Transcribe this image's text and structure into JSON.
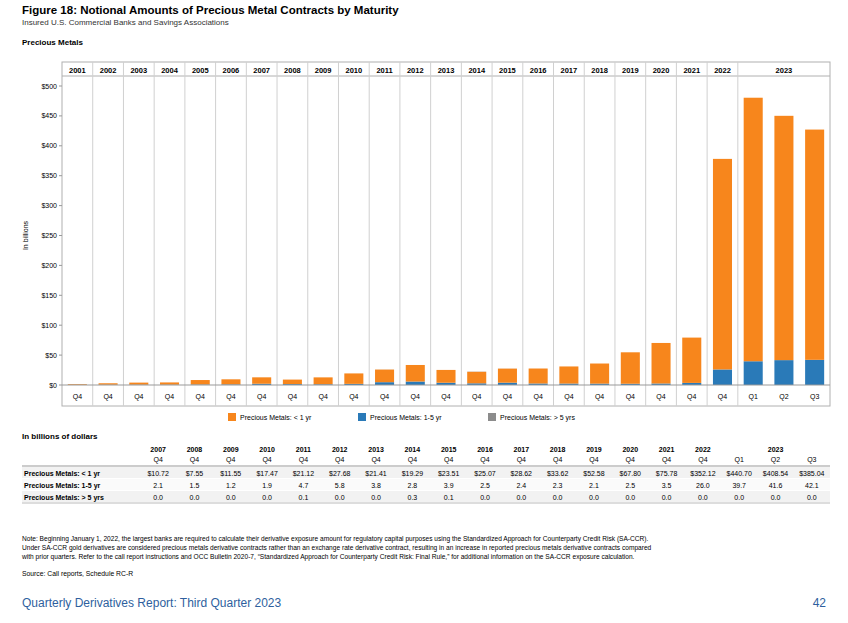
{
  "header": {
    "title": "Figure 18: Notional Amounts of Precious Metal Contracts by Maturity",
    "subtitle": "Insured U.S. Commercial Banks and Savings Associations"
  },
  "chart_data": {
    "type": "bar",
    "title": "Precious Metals",
    "y_label": "In billions",
    "stacked": true,
    "grid": false,
    "legend": "bottom",
    "year_groups": [
      {
        "label": "2001",
        "count": 1
      },
      {
        "label": "2002",
        "count": 1
      },
      {
        "label": "2003",
        "count": 1
      },
      {
        "label": "2004",
        "count": 1
      },
      {
        "label": "2005",
        "count": 1
      },
      {
        "label": "2006",
        "count": 1
      },
      {
        "label": "2007",
        "count": 1
      },
      {
        "label": "2008",
        "count": 1
      },
      {
        "label": "2009",
        "count": 1
      },
      {
        "label": "2010",
        "count": 1
      },
      {
        "label": "2011",
        "count": 1
      },
      {
        "label": "2012",
        "count": 1
      },
      {
        "label": "2013",
        "count": 1
      },
      {
        "label": "2014",
        "count": 1
      },
      {
        "label": "2015",
        "count": 1
      },
      {
        "label": "2016",
        "count": 1
      },
      {
        "label": "2017",
        "count": 1
      },
      {
        "label": "2018",
        "count": 1
      },
      {
        "label": "2019",
        "count": 1
      },
      {
        "label": "2020",
        "count": 1
      },
      {
        "label": "2021",
        "count": 1
      },
      {
        "label": "2022",
        "count": 1
      },
      {
        "label": "2023",
        "count": 3
      }
    ],
    "categories": [
      "Q4",
      "Q4",
      "Q4",
      "Q4",
      "Q4",
      "Q4",
      "Q4",
      "Q4",
      "Q4",
      "Q4",
      "Q4",
      "Q4",
      "Q4",
      "Q4",
      "Q4",
      "Q4",
      "Q4",
      "Q4",
      "Q4",
      "Q4",
      "Q4",
      "Q4",
      "Q1",
      "Q2",
      "Q3"
    ],
    "series": [
      {
        "name": "Precious Metals: < 1 yr",
        "color": "#f7861c",
        "values": [
          1.2,
          2.5,
          3.5,
          3.8,
          7.5,
          8.5,
          10.72,
          7.55,
          11.55,
          17.47,
          21.12,
          27.68,
          21.41,
          19.29,
          23.51,
          25.07,
          28.62,
          33.62,
          52.58,
          67.8,
          75.78,
          352.12,
          440.7,
          408.54,
          385.04
        ]
      },
      {
        "name": "Precious Metals: 1-5 yr",
        "color": "#2a7ab8",
        "values": [
          0.3,
          0.4,
          0.5,
          0.5,
          0.8,
          1.0,
          2.1,
          1.5,
          1.2,
          1.9,
          4.7,
          5.8,
          3.8,
          2.8,
          3.9,
          2.5,
          2.4,
          2.3,
          2.1,
          2.5,
          3.5,
          26.0,
          39.7,
          41.6,
          42.1
        ]
      },
      {
        "name": "Precious Metals: > 5 yrs",
        "color": "#8c8c8c",
        "values": [
          0,
          0,
          0,
          0,
          0,
          0,
          0.0,
          0.0,
          0.0,
          0.0,
          0.1,
          0.0,
          0.0,
          0.3,
          0.1,
          0.0,
          0.0,
          0.0,
          0.0,
          0.0,
          0.0,
          0.0,
          0.0,
          0.0,
          0.0
        ]
      }
    ],
    "ylim": [
      0,
      500
    ],
    "yticks": [
      {
        "value": 0,
        "label": "$0"
      },
      {
        "value": 50,
        "label": "$50"
      },
      {
        "value": 100,
        "label": "$100"
      },
      {
        "value": 150,
        "label": "$150"
      },
      {
        "value": 200,
        "label": "$200"
      },
      {
        "value": 250,
        "label": "$250"
      },
      {
        "value": 300,
        "label": "$300"
      },
      {
        "value": 350,
        "label": "$350"
      },
      {
        "value": 400,
        "label": "$400"
      },
      {
        "value": 450,
        "label": "$450"
      },
      {
        "value": 500,
        "label": "$500"
      }
    ]
  },
  "table": {
    "title": "In billions of dollars",
    "years": [
      {
        "label": "2007",
        "count": 1
      },
      {
        "label": "2008",
        "count": 1
      },
      {
        "label": "2009",
        "count": 1
      },
      {
        "label": "2010",
        "count": 1
      },
      {
        "label": "2011",
        "count": 1
      },
      {
        "label": "2012",
        "count": 1
      },
      {
        "label": "2013",
        "count": 1
      },
      {
        "label": "2014",
        "count": 1
      },
      {
        "label": "2015",
        "count": 1
      },
      {
        "label": "2016",
        "count": 1
      },
      {
        "label": "2017",
        "count": 1
      },
      {
        "label": "2018",
        "count": 1
      },
      {
        "label": "2019",
        "count": 1
      },
      {
        "label": "2020",
        "count": 1
      },
      {
        "label": "2021",
        "count": 1
      },
      {
        "label": "2022",
        "count": 1
      },
      {
        "label": "2023",
        "count": 3
      }
    ],
    "quarters": [
      "Q4",
      "Q4",
      "Q4",
      "Q4",
      "Q4",
      "Q4",
      "Q4",
      "Q4",
      "Q4",
      "Q4",
      "Q4",
      "Q4",
      "Q4",
      "Q4",
      "Q4",
      "Q4",
      "Q1",
      "Q2",
      "Q3"
    ],
    "rows": [
      {
        "label": "Precious Metals: < 1 yr",
        "cells": [
          "$10.72",
          "$7.55",
          "$11.55",
          "$17.47",
          "$21.12",
          "$27.68",
          "$21.41",
          "$19.29",
          "$23.51",
          "$25.07",
          "$28.62",
          "$33.62",
          "$52.58",
          "$67.80",
          "$75.78",
          "$352.12",
          "$440.70",
          "$408.54",
          "$385.04"
        ]
      },
      {
        "label": "Precious Metals: 1-5 yr",
        "cells": [
          "2.1",
          "1.5",
          "1.2",
          "1.9",
          "4.7",
          "5.8",
          "3.8",
          "2.8",
          "3.9",
          "2.5",
          "2.4",
          "2.3",
          "2.1",
          "2.5",
          "3.5",
          "26.0",
          "39.7",
          "41.6",
          "42.1"
        ]
      },
      {
        "label": "Precious Metals: > 5 yrs",
        "cells": [
          "0.0",
          "0.0",
          "0.0",
          "0.0",
          "0.1",
          "0.0",
          "0.0",
          "0.3",
          "0.1",
          "0.0",
          "0.0",
          "0.0",
          "0.0",
          "0.0",
          "0.0",
          "0.0",
          "0.0",
          "0.0",
          "0.0"
        ]
      }
    ]
  },
  "note": [
    "Note: Beginning January 1, 2022, the largest banks are required to calculate their derivative exposure amount for regulatory capital purposes using the Standardized Approach for Counterparty Credit Risk (SA-CCR).",
    "Under SA-CCR gold derivatives are considered precious metals derivative contracts rather than an exchange rate derivative contract, resulting in an increase in reported precious metals derivative contracts compared",
    "with prior quarters. Refer to the call report instructions and OCC Bulletin 2020-7, “Standardized Approach for Counterparty Credit Risk: Final Rule,” for additional information on the SA-CCR exposure calculation."
  ],
  "source": "Source: Call reports, Schedule RC-R",
  "footer": {
    "left": "Quarterly Derivatives Report: Third Quarter 2023",
    "page": "42"
  }
}
